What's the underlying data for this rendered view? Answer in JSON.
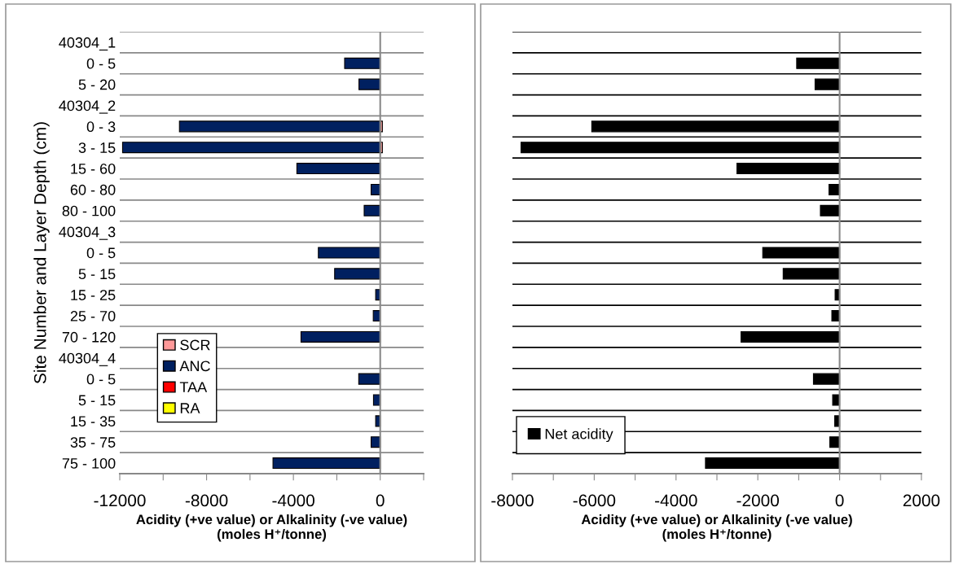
{
  "chart_data": [
    {
      "type": "bar",
      "orientation": "horizontal",
      "stacked": true,
      "ylabel": "Site Number and Layer Depth (cm)",
      "xlabel": "Acidity (+ve value) or Alkalinity (-ve value)\n(moles H⁺/tonne)",
      "categories": [
        "40304_1",
        "0 - 5",
        "5 - 20",
        "40304_2",
        "0 - 3",
        "3 - 15",
        "15 - 60",
        "60 - 80",
        "80 - 100",
        "40304_3",
        "0 - 5",
        "5 - 15",
        "15 - 25",
        "25 - 70",
        "70 - 120",
        "40304_4",
        "0 - 5",
        "5 - 15",
        "15 - 35",
        "35 - 75",
        "75 - 100"
      ],
      "series": [
        {
          "name": "SCR",
          "color": "#ff9999",
          "values": [
            null,
            null,
            null,
            null,
            100,
            100,
            null,
            null,
            null,
            null,
            null,
            null,
            null,
            null,
            null,
            null,
            null,
            null,
            null,
            null,
            null
          ]
        },
        {
          "name": "ANC",
          "color": "#002060",
          "values": [
            null,
            -1640,
            -980,
            null,
            -9250,
            -11870,
            -3840,
            -420,
            -740,
            null,
            -2850,
            -2100,
            -210,
            -320,
            -3650,
            null,
            -990,
            -310,
            -210,
            -420,
            -4940
          ]
        },
        {
          "name": "TAA",
          "color": "#ff0000",
          "values": [
            null,
            null,
            null,
            null,
            null,
            null,
            null,
            null,
            null,
            null,
            null,
            null,
            null,
            null,
            null,
            null,
            null,
            null,
            null,
            null,
            null
          ]
        },
        {
          "name": "RA",
          "color": "#ffff00",
          "values": [
            null,
            null,
            null,
            null,
            null,
            null,
            null,
            null,
            null,
            null,
            null,
            null,
            null,
            null,
            null,
            null,
            null,
            null,
            null,
            null,
            null
          ]
        }
      ],
      "xlim": [
        -12000,
        2000
      ],
      "xticks": [
        -12000,
        {
          "value": -10000,
          "label": null
        },
        -8000,
        {
          "value": -6000,
          "label": null
        },
        -4000,
        {
          "value": -2000,
          "label": null
        },
        0,
        {
          "value": 2000,
          "label": null
        }
      ],
      "grid": "y",
      "legend": "bottom left"
    },
    {
      "type": "bar",
      "orientation": "horizontal",
      "xlabel": "Acidity (+ve value) or Alkalinity (-ve value)\n(moles H⁺/tonne)",
      "categories": [
        null,
        null,
        null,
        null,
        null,
        null,
        null,
        null,
        null,
        null,
        null,
        null,
        null,
        null,
        null,
        null,
        null,
        null,
        null,
        null,
        null
      ],
      "series": [
        {
          "name": "Net acidity",
          "color": "#000000",
          "values": [
            null,
            -1050,
            -600,
            null,
            -6060,
            -7790,
            -2510,
            -260,
            -470,
            null,
            -1880,
            -1380,
            -110,
            -190,
            -2410,
            null,
            -640,
            -170,
            -120,
            -240,
            -3280
          ]
        }
      ],
      "xlim": [
        -8000,
        2000
      ],
      "xticks": [
        -8000,
        {
          "value": -7000,
          "label": null
        },
        -6000,
        {
          "value": -5000,
          "label": null
        },
        -4000,
        {
          "value": -3000,
          "label": null
        },
        -2000,
        {
          "value": -1000,
          "label": null
        },
        0,
        {
          "value": 1000,
          "label": null
        },
        2000
      ],
      "grid": "y",
      "legend": "bottom left",
      "tick_labels": "x"
    }
  ]
}
